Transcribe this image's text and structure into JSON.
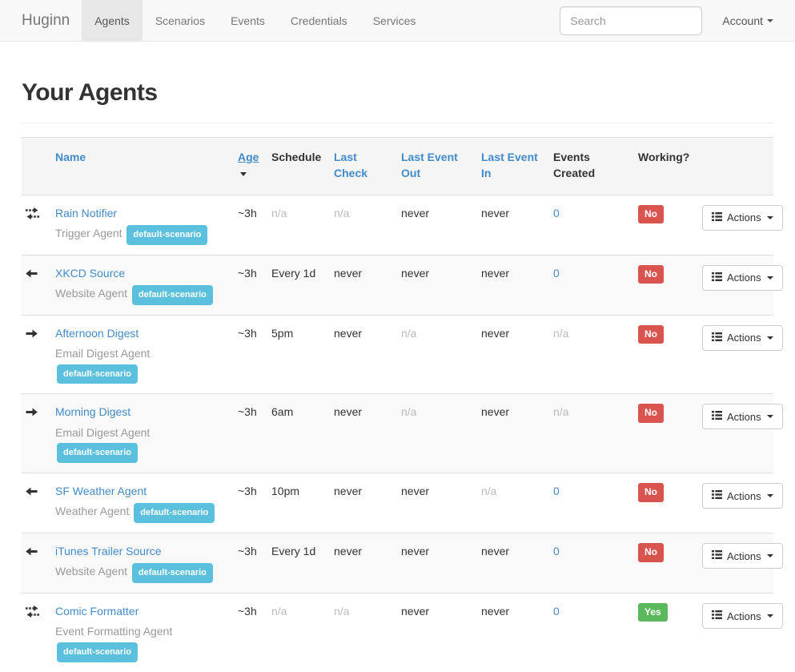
{
  "navbar": {
    "brand": "Huginn",
    "items": [
      {
        "label": "Agents",
        "active": true
      },
      {
        "label": "Scenarios",
        "active": false
      },
      {
        "label": "Events",
        "active": false
      },
      {
        "label": "Credentials",
        "active": false
      },
      {
        "label": "Services",
        "active": false
      }
    ],
    "search_placeholder": "Search",
    "account_label": "Account"
  },
  "page": {
    "title": "Your Agents"
  },
  "table": {
    "headers": {
      "name": "Name",
      "age": "Age",
      "schedule": "Schedule",
      "last_check": "Last Check",
      "last_event_out": "Last Event Out",
      "last_event_in": "Last Event In",
      "events_created": "Events Created",
      "working": "Working?"
    },
    "sorted_by": "age",
    "badge_label": "default-scenario",
    "actions_label": "Actions",
    "rows": [
      {
        "icon": "exchange",
        "name": "Rain Notifier",
        "type": "Trigger Agent",
        "age": "~3h",
        "schedule": "n/a",
        "last_check": "n/a",
        "last_event_out": "never",
        "last_event_in": "never",
        "events": "0",
        "working": "No"
      },
      {
        "icon": "arrow-left",
        "name": "XKCD Source",
        "type": "Website Agent",
        "age": "~3h",
        "schedule": "Every 1d",
        "last_check": "never",
        "last_event_out": "never",
        "last_event_in": "never",
        "events": "0",
        "working": "No"
      },
      {
        "icon": "arrow-right",
        "name": "Afternoon Digest",
        "type": "Email Digest Agent",
        "age": "~3h",
        "schedule": "5pm",
        "last_check": "never",
        "last_event_out": "n/a",
        "last_event_in": "never",
        "events": "n/a",
        "working": "No"
      },
      {
        "icon": "arrow-right",
        "name": "Morning Digest",
        "type": "Email Digest Agent",
        "age": "~3h",
        "schedule": "6am",
        "last_check": "never",
        "last_event_out": "n/a",
        "last_event_in": "never",
        "events": "n/a",
        "working": "No"
      },
      {
        "icon": "arrow-left",
        "name": "SF Weather Agent",
        "type": "Weather Agent",
        "age": "~3h",
        "schedule": "10pm",
        "last_check": "never",
        "last_event_out": "never",
        "last_event_in": "n/a",
        "events": "0",
        "working": "No"
      },
      {
        "icon": "arrow-left",
        "name": "iTunes Trailer Source",
        "type": "Website Agent",
        "age": "~3h",
        "schedule": "Every 1d",
        "last_check": "never",
        "last_event_out": "never",
        "last_event_in": "never",
        "events": "0",
        "working": "No"
      },
      {
        "icon": "exchange",
        "name": "Comic Formatter",
        "type": "Event Formatting Agent",
        "age": "~3h",
        "schedule": "n/a",
        "last_check": "n/a",
        "last_event_out": "never",
        "last_event_in": "never",
        "events": "0",
        "working": "Yes"
      }
    ]
  },
  "colors": {
    "link": "#428bca",
    "badge_info": "#5bc0de",
    "label_danger": "#d9534f",
    "label_success": "#5cb85c",
    "navbar_bg": "#f8f8f8",
    "thead_bg": "#f5f5f5",
    "stripe_bg": "#f9f9f9"
  }
}
